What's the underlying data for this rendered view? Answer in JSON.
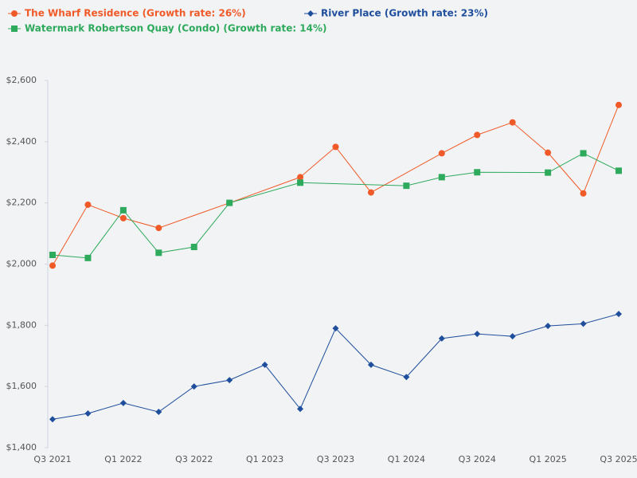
{
  "chart_data": {
    "type": "line",
    "categories": [
      "Q3 2021",
      null,
      "Q1 2022",
      null,
      "Q3 2022",
      null,
      "Q1 2023",
      null,
      "Q3 2023",
      null,
      "Q1 2024",
      null,
      "Q3 2024",
      null,
      "Q1 2025",
      null,
      "Q3 2025"
    ],
    "series": [
      {
        "name": "The Wharf Residence (Growth rate: 26%)",
        "color": "#f05a28",
        "marker": "circle",
        "values": [
          1995,
          2194,
          2150,
          2118,
          null,
          2200,
          null,
          2284,
          2383,
          2234,
          null,
          2362,
          2422,
          2463,
          2364,
          2231,
          2520
        ]
      },
      {
        "name": "River Place (Growth rate: 23%)",
        "color": "#1f4e9c",
        "marker": "diamond",
        "values": [
          1493,
          1512,
          1546,
          1517,
          1600,
          1621,
          1671,
          1527,
          1790,
          1671,
          1631,
          1757,
          1772,
          1764,
          1798,
          1805,
          1837
        ]
      },
      {
        "name": "Watermark Robertson Quay (Condo) (Growth rate: 14%)",
        "color": "#2eaa5c",
        "marker": "square",
        "values": [
          2030,
          2020,
          2176,
          2037,
          2056,
          2200,
          null,
          2266,
          null,
          null,
          2256,
          2284,
          2300,
          null,
          2299,
          2362,
          2305
        ]
      }
    ],
    "ylim": [
      1400,
      2600
    ],
    "yticks": [
      {
        "value": 1400,
        "label": "$1,400"
      },
      {
        "value": 1600,
        "label": "$1,600"
      },
      {
        "value": 1800,
        "label": "$1,800"
      },
      {
        "value": 2000,
        "label": "$2,000"
      },
      {
        "value": 2200,
        "label": "$2,200"
      },
      {
        "value": 2400,
        "label": "$2,400"
      },
      {
        "value": 2600,
        "label": "$2,600"
      }
    ],
    "span_gaps": true,
    "grid": false
  }
}
